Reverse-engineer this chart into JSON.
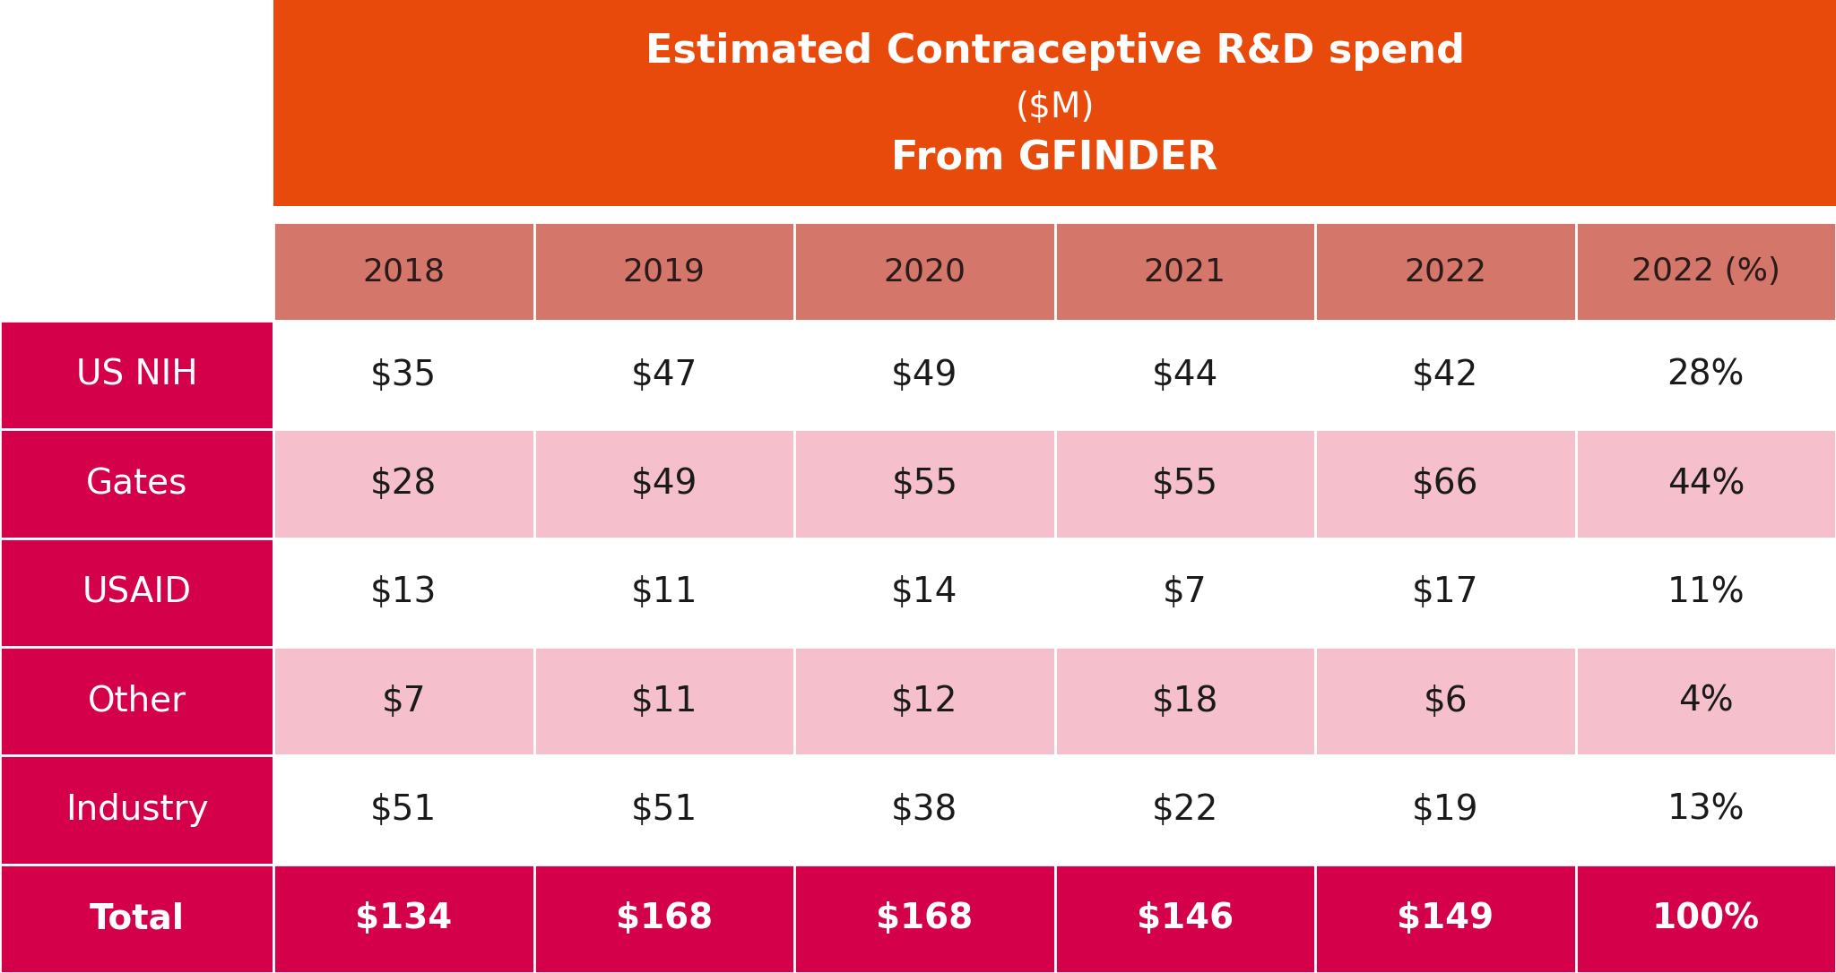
{
  "title_line1": "Estimated Contraceptive R&D spend",
  "title_line2": "($M)",
  "title_line3": "From GFINDER",
  "col_headers": [
    "2018",
    "2019",
    "2020",
    "2021",
    "2022",
    "2022 (%)"
  ],
  "row_labels": [
    "US NIH",
    "Gates",
    "USAID",
    "Other",
    "Industry",
    "Total"
  ],
  "table_data": [
    [
      "$35",
      "$47",
      "$49",
      "$44",
      "$42",
      "28%"
    ],
    [
      "$28",
      "$49",
      "$55",
      "$55",
      "$66",
      "44%"
    ],
    [
      "$13",
      "$11",
      "$14",
      "$7",
      "$17",
      "11%"
    ],
    [
      "$7",
      "$11",
      "$12",
      "$18",
      "$6",
      "4%"
    ],
    [
      "$51",
      "$51",
      "$38",
      "$22",
      "$19",
      "13%"
    ],
    [
      "$134",
      "$168",
      "$168",
      "$146",
      "$149",
      "100%"
    ]
  ],
  "header_bg": "#E84A0C",
  "col_header_bg": "#D4766A",
  "row_label_bg": "#D4004A",
  "total_row_bg": "#D4004A",
  "row_bg_colors": [
    "#FFFFFF",
    "#F5C0CC",
    "#FFFFFF",
    "#F5C0CC",
    "#FFFFFF"
  ],
  "background_color": "#FFFFFF",
  "title_text_color": "#FFFFFF",
  "col_header_text_color": "#2A1A1A",
  "row_label_text_color": "#FFFFFF",
  "data_text_color": "#1A1A1A",
  "total_text_color": "#FFFFFF",
  "gap_color": "#FFFFFF"
}
